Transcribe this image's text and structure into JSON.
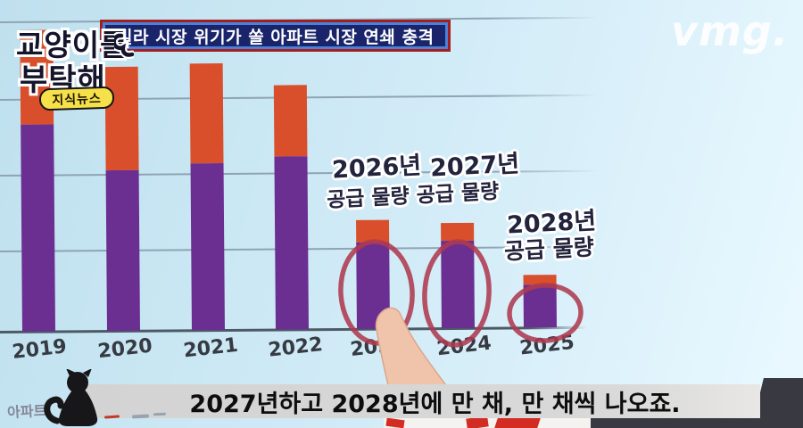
{
  "branding": {
    "logo_line1": "교양이를",
    "logo_line2": "부탁해",
    "badge": "지식뉴스",
    "channel_logo": "vmg."
  },
  "header": {
    "banner_text": "빌라 시장 위기가 쏠 아파트 시장 연쇄 충격"
  },
  "chart_data": {
    "type": "bar",
    "stacked": true,
    "title": "",
    "xlabel": "",
    "ylabel": "",
    "categories": [
      "2019",
      "2020",
      "2021",
      "2022",
      "2023",
      "2024",
      "2025"
    ],
    "series": [
      {
        "name": "purple-segment",
        "color": "#6b2e91",
        "values": [
          232,
          180,
          187,
          194,
          97,
          98,
          48
        ]
      },
      {
        "name": "red-segment",
        "color": "#d94f2b",
        "values": [
          106,
          116,
          112,
          80,
          25,
          20,
          11
        ]
      }
    ],
    "unit": "relative height (no numeric axis labels visible; pixel-estimated)",
    "grid": "horizontal gridlines, no y tick labels",
    "highlighted_categories": [
      "2023",
      "2024",
      "2025"
    ],
    "highlight_style": "hand-drawn red circles",
    "annotations": [
      "2026년 공급 물량",
      "2027년 공급 물량",
      "2028년 공급 물량"
    ]
  },
  "annotations": {
    "y2026": "2026년",
    "y2027": "2027년",
    "supply_double": "공급 물량 공급 물량",
    "y2028": "2028년",
    "supply_single": "공급 물량"
  },
  "legend": {
    "apartment_label": "아파트"
  },
  "subtitle": {
    "text": "2027년하고 2028년에 만 채, 만 채씩 나오죠."
  },
  "icons": {
    "cat": "black-cat-silhouette",
    "finger": "pointing-finger",
    "pen": "marker-pen"
  },
  "colors": {
    "background": "#cde9f5",
    "bar_purple": "#6b2e91",
    "bar_red": "#d94f2b",
    "circle_red": "#ae3a50",
    "banner_navy": "#19246b",
    "banner_blue_border": "#4b82d8",
    "banner_red_frame": "#a31f1f",
    "badge_yellow": "#f6e14b",
    "subtitle_gray": "#d6d6d6"
  }
}
